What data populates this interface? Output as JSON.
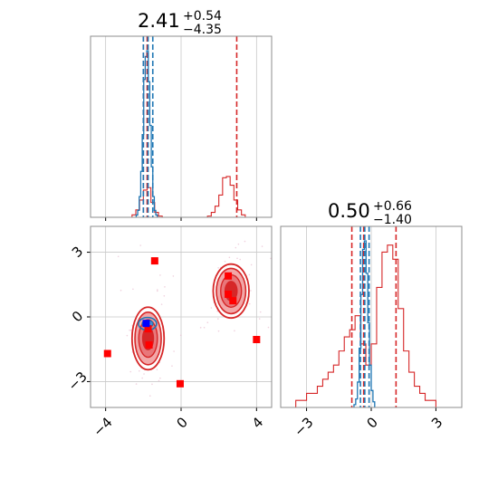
{
  "chart_data": {
    "type": "corner",
    "colors": {
      "red": "#d62728",
      "blue": "#1f77b4",
      "point": "#ff0000",
      "point_blue": "#0000ff",
      "fill_red": "#f2a7a8",
      "fill_red_dark": "#d62728",
      "grid": "#c8c8c8",
      "axis": "#000000"
    },
    "grid": true,
    "parameters": [
      {
        "title_value": "2.41",
        "title_plus": "+0.54",
        "title_minus": "−4.35",
        "range": [
          -4.8,
          4.8
        ],
        "ticks": [
          -4,
          0,
          4
        ],
        "tick_labels": [
          "−4",
          "0",
          "4"
        ],
        "quantile_lines": {
          "red": [
            -2.0,
            -1.8,
            2.95
          ],
          "blue": [
            -2.0,
            -1.75,
            -1.5
          ]
        }
      },
      {
        "title_value": "0.50",
        "title_plus": "+0.66",
        "title_minus": "−1.40",
        "range": [
          -4.2,
          4.2
        ],
        "ticks": [
          -3,
          0,
          3
        ],
        "tick_labels": [
          "−3",
          "0",
          "3"
        ],
        "quantile_lines": {
          "red": [
            -0.9,
            -0.35,
            1.15
          ],
          "blue": [
            -0.5,
            -0.3,
            -0.1
          ]
        }
      }
    ],
    "hist_1d": [
      {
        "bin_edges": [
          -2.6,
          2.6
        ],
        "red": {
          "bin_width": 0.2,
          "values": [
            {
              "x": -2.5,
              "y": 2
            },
            {
              "x": -2.3,
              "y": 6
            },
            {
              "x": -2.1,
              "y": 14
            },
            {
              "x": -1.9,
              "y": 22
            },
            {
              "x": -1.7,
              "y": 24
            },
            {
              "x": -1.5,
              "y": 12
            },
            {
              "x": -1.3,
              "y": 4
            },
            {
              "x": -1.1,
              "y": 1
            },
            {
              "x": 1.5,
              "y": 1
            },
            {
              "x": 1.7,
              "y": 4
            },
            {
              "x": 1.9,
              "y": 9
            },
            {
              "x": 2.1,
              "y": 18
            },
            {
              "x": 2.3,
              "y": 32
            },
            {
              "x": 2.5,
              "y": 33
            },
            {
              "x": 2.7,
              "y": 26
            },
            {
              "x": 2.9,
              "y": 14
            },
            {
              "x": 3.1,
              "y": 6
            },
            {
              "x": 3.3,
              "y": 2
            }
          ]
        },
        "blue": {
          "bin_width": 0.08,
          "values": [
            {
              "x": -2.34,
              "y": 2
            },
            {
              "x": -2.26,
              "y": 6
            },
            {
              "x": -2.18,
              "y": 18
            },
            {
              "x": -2.1,
              "y": 40
            },
            {
              "x": -2.02,
              "y": 72
            },
            {
              "x": -1.94,
              "y": 120
            },
            {
              "x": -1.86,
              "y": 140
            },
            {
              "x": -1.78,
              "y": 145
            },
            {
              "x": -1.7,
              "y": 118
            },
            {
              "x": -1.62,
              "y": 80
            },
            {
              "x": -1.54,
              "y": 44
            },
            {
              "x": -1.46,
              "y": 18
            },
            {
              "x": -1.38,
              "y": 6
            },
            {
              "x": -1.3,
              "y": 2
            }
          ]
        }
      },
      {
        "red": {
          "bin_width": 0.25,
          "values": [
            {
              "x": -3.375,
              "y": 1
            },
            {
              "x": -3.125,
              "y": 1
            },
            {
              "x": -2.875,
              "y": 2
            },
            {
              "x": -2.625,
              "y": 2
            },
            {
              "x": -2.375,
              "y": 3
            },
            {
              "x": -2.125,
              "y": 4
            },
            {
              "x": -1.875,
              "y": 5
            },
            {
              "x": -1.625,
              "y": 6
            },
            {
              "x": -1.375,
              "y": 8
            },
            {
              "x": -1.125,
              "y": 10
            },
            {
              "x": -0.875,
              "y": 11
            },
            {
              "x": -0.625,
              "y": 13
            },
            {
              "x": -0.375,
              "y": 9
            },
            {
              "x": -0.125,
              "y": 6
            },
            {
              "x": 0.125,
              "y": 9
            },
            {
              "x": 0.375,
              "y": 17
            },
            {
              "x": 0.625,
              "y": 22
            },
            {
              "x": 0.875,
              "y": 23
            },
            {
              "x": 1.125,
              "y": 21
            },
            {
              "x": 1.375,
              "y": 14
            },
            {
              "x": 1.625,
              "y": 8
            },
            {
              "x": 1.875,
              "y": 5
            },
            {
              "x": 2.125,
              "y": 3
            },
            {
              "x": 2.375,
              "y": 2
            },
            {
              "x": 2.625,
              "y": 1
            },
            {
              "x": 2.875,
              "y": 1
            }
          ]
        },
        "blue": {
          "bin_width": 0.08,
          "values": [
            {
              "x": -0.76,
              "y": 2
            },
            {
              "x": -0.68,
              "y": 6
            },
            {
              "x": -0.6,
              "y": 18
            },
            {
              "x": -0.52,
              "y": 42
            },
            {
              "x": -0.44,
              "y": 80
            },
            {
              "x": -0.36,
              "y": 112
            },
            {
              "x": -0.28,
              "y": 118
            },
            {
              "x": -0.2,
              "y": 95
            },
            {
              "x": -0.12,
              "y": 60
            },
            {
              "x": -0.04,
              "y": 30
            },
            {
              "x": 0.04,
              "y": 12
            },
            {
              "x": 0.12,
              "y": 4
            }
          ]
        }
      }
    ],
    "hist_2d": {
      "red_points": [
        {
          "x": -1.4,
          "y": 2.6
        },
        {
          "x": 2.5,
          "y": 1.9
        },
        {
          "x": 2.5,
          "y": 1.05
        },
        {
          "x": 2.75,
          "y": 0.75
        },
        {
          "x": -3.9,
          "y": -1.7
        },
        {
          "x": 4.0,
          "y": -1.05
        },
        {
          "x": -0.05,
          "y": -3.1
        },
        {
          "x": -1.7,
          "y": -1.3
        },
        {
          "x": -1.75,
          "y": -0.55
        }
      ],
      "blue_points": [
        {
          "x": -1.85,
          "y": -0.3
        }
      ],
      "red_contours": [
        {
          "cx": -1.75,
          "cy": -1.0,
          "rx": 0.85,
          "ry": 1.45
        },
        {
          "cx": 2.65,
          "cy": 1.2,
          "rx": 0.95,
          "ry": 1.25
        }
      ]
    }
  }
}
